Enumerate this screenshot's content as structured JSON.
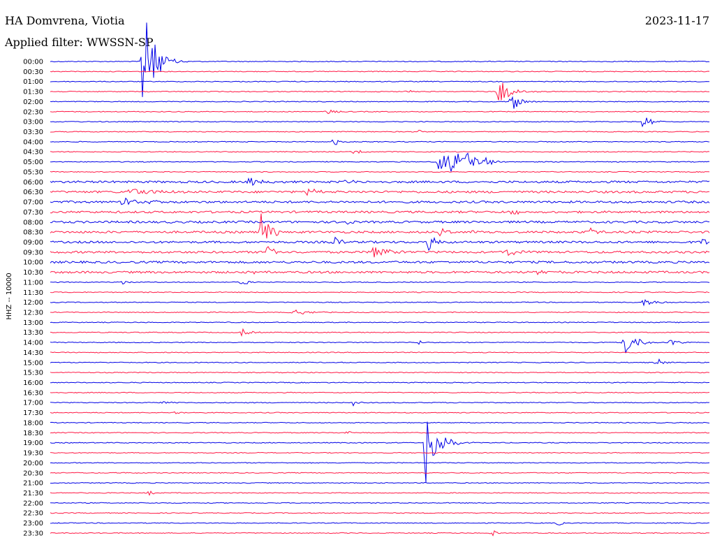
{
  "header": {
    "station": "HA Domvrena, Viotia",
    "date": "2023-11-17",
    "filter": "Applied filter: WWSSN-SP"
  },
  "chart_data": {
    "type": "line",
    "title": "HA Domvrena, Viotia",
    "subtitle": "Applied filter: WWSSN-SP",
    "date": "2023-11-17",
    "ylabel": "HHZ -- 10000",
    "row_labels": [
      "00:00",
      "00:30",
      "01:00",
      "01:30",
      "02:00",
      "02:30",
      "03:00",
      "03:30",
      "04:00",
      "04:30",
      "05:00",
      "05:30",
      "06:00",
      "06:30",
      "07:00",
      "07:30",
      "08:00",
      "08:30",
      "09:00",
      "09:30",
      "10:00",
      "10:30",
      "11:00",
      "11:30",
      "12:00",
      "12:30",
      "13:00",
      "13:30",
      "14:00",
      "14:30",
      "15:00",
      "15:30",
      "16:00",
      "16:30",
      "17:00",
      "17:30",
      "18:00",
      "18:30",
      "19:00",
      "19:30",
      "20:00",
      "20:30",
      "21:00",
      "21:30",
      "22:00",
      "22:30",
      "23:00",
      "23:30"
    ],
    "colors": [
      "#0000e6",
      "#ff1744"
    ],
    "x_unit": "fraction of 30-minute row",
    "events": [
      {
        "row": 0,
        "x": 0.14,
        "amp": 88,
        "dur": 0.03
      },
      {
        "row": 3,
        "x": 0.54,
        "amp": 4,
        "dur": 0.015
      },
      {
        "row": 3,
        "x": 0.68,
        "amp": 22,
        "dur": 0.03
      },
      {
        "row": 4,
        "x": 0.7,
        "amp": 16,
        "dur": 0.02
      },
      {
        "row": 5,
        "x": 0.42,
        "amp": 4,
        "dur": 0.02
      },
      {
        "row": 6,
        "x": 0.9,
        "amp": 12,
        "dur": 0.02
      },
      {
        "row": 7,
        "x": 0.56,
        "amp": 3,
        "dur": 0.01
      },
      {
        "row": 8,
        "x": 0.43,
        "amp": 6,
        "dur": 0.02
      },
      {
        "row": 9,
        "x": 0.46,
        "amp": 4,
        "dur": 0.03
      },
      {
        "row": 10,
        "x": 0.59,
        "amp": 20,
        "dur": 0.03
      },
      {
        "row": 10,
        "x": 0.61,
        "amp": 24,
        "dur": 0.02
      },
      {
        "row": 10,
        "x": 0.63,
        "amp": 22,
        "dur": 0.02
      },
      {
        "row": 10,
        "x": 0.66,
        "amp": 10,
        "dur": 0.02
      },
      {
        "row": 12,
        "x": 0.3,
        "amp": 8,
        "dur": 0.03
      },
      {
        "row": 12,
        "x": 0.45,
        "amp": 6,
        "dur": 0.01
      },
      {
        "row": 13,
        "x": 0.12,
        "amp": 6,
        "dur": 0.06
      },
      {
        "row": 13,
        "x": 0.39,
        "amp": 8,
        "dur": 0.02
      },
      {
        "row": 14,
        "x": 0.11,
        "amp": 10,
        "dur": 0.02
      },
      {
        "row": 14,
        "x": 0.15,
        "amp": 8,
        "dur": 0.02
      },
      {
        "row": 15,
        "x": 0.7,
        "amp": 10,
        "dur": 0.02
      },
      {
        "row": 16,
        "x": 0.45,
        "amp": 6,
        "dur": 0.01
      },
      {
        "row": 17,
        "x": 0.32,
        "amp": 26,
        "dur": 0.03
      },
      {
        "row": 17,
        "x": 0.59,
        "amp": 12,
        "dur": 0.02
      },
      {
        "row": 17,
        "x": 0.64,
        "amp": 6,
        "dur": 0.01
      },
      {
        "row": 17,
        "x": 0.82,
        "amp": 6,
        "dur": 0.02
      },
      {
        "row": 18,
        "x": 0.57,
        "amp": 20,
        "dur": 0.02
      },
      {
        "row": 18,
        "x": 0.43,
        "amp": 8,
        "dur": 0.02
      },
      {
        "row": 18,
        "x": 0.99,
        "amp": 6,
        "dur": 0.01
      },
      {
        "row": 19,
        "x": 0.33,
        "amp": 12,
        "dur": 0.02
      },
      {
        "row": 19,
        "x": 0.49,
        "amp": 12,
        "dur": 0.04
      },
      {
        "row": 19,
        "x": 0.69,
        "amp": 8,
        "dur": 0.03
      },
      {
        "row": 21,
        "x": 0.74,
        "amp": 8,
        "dur": 0.02
      },
      {
        "row": 21,
        "x": 0.31,
        "amp": 4,
        "dur": 0.01
      },
      {
        "row": 22,
        "x": 0.29,
        "amp": 6,
        "dur": 0.02
      },
      {
        "row": 22,
        "x": 0.11,
        "amp": 4,
        "dur": 0.01
      },
      {
        "row": 24,
        "x": 0.9,
        "amp": 5,
        "dur": 0.04
      },
      {
        "row": 25,
        "x": 0.37,
        "amp": 5,
        "dur": 0.04
      },
      {
        "row": 27,
        "x": 0.29,
        "amp": 6,
        "dur": 0.02
      },
      {
        "row": 28,
        "x": 0.87,
        "amp": 22,
        "dur": 0.03
      },
      {
        "row": 28,
        "x": 0.56,
        "amp": 4,
        "dur": 0.01
      },
      {
        "row": 28,
        "x": 0.94,
        "amp": 5,
        "dur": 0.02
      },
      {
        "row": 30,
        "x": 0.92,
        "amp": 6,
        "dur": 0.02
      },
      {
        "row": 34,
        "x": 0.46,
        "amp": 6,
        "dur": 0.01
      },
      {
        "row": 34,
        "x": 0.17,
        "amp": 4,
        "dur": 0.02
      },
      {
        "row": 35,
        "x": 0.19,
        "amp": 4,
        "dur": 0.02
      },
      {
        "row": 37,
        "x": 0.45,
        "amp": 4,
        "dur": 0.01
      },
      {
        "row": 38,
        "x": 0.57,
        "amp": 70,
        "dur": 0.03
      },
      {
        "row": 41,
        "x": 0.11,
        "amp": 4,
        "dur": 0.01
      },
      {
        "row": 43,
        "x": 0.15,
        "amp": 5,
        "dur": 0.01
      },
      {
        "row": 44,
        "x": 0.77,
        "amp": 4,
        "dur": 0.01
      },
      {
        "row": 46,
        "x": 0.77,
        "amp": 5,
        "dur": 0.01
      },
      {
        "row": 47,
        "x": 0.67,
        "amp": 7,
        "dur": 0.01
      }
    ]
  }
}
